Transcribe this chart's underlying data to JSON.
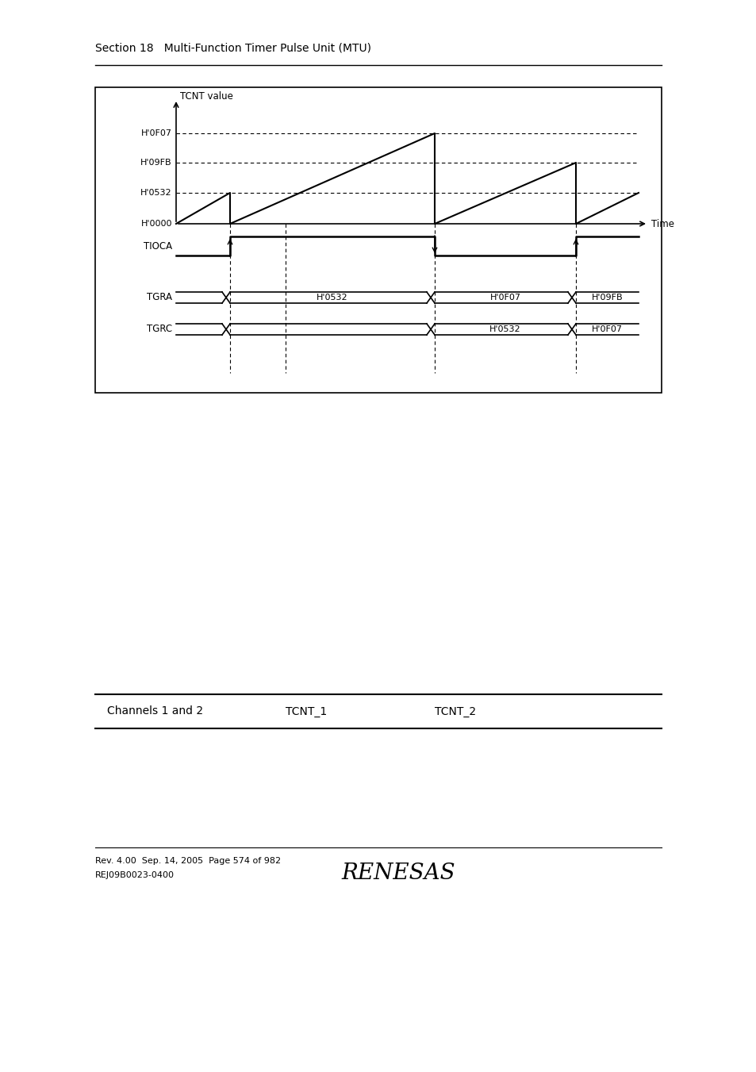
{
  "section_header": "Section 18   Multi-Function Timer Pulse Unit (MTU)",
  "tcnt_label": "TCNT value",
  "time_label": "Time",
  "h_levels": [
    "H'0F07",
    "H'09FB",
    "H'0532",
    "H'0000"
  ],
  "tioca_label": "TIOCA",
  "tgra_label": "TGRA",
  "tgrc_label": "TGRC",
  "tgra_values": [
    "H'0532",
    "H'0F07",
    "H'09FB"
  ],
  "tgrc_values": [
    "H'0532",
    "H'0F07"
  ],
  "footer_line1": "Channels 1 and 2",
  "footer_tcnt1": "TCNT_1",
  "footer_tcnt2": "TCNT_2",
  "rev_line": "Rev. 4.00  Sep. 14, 2005  Page 574 of 982",
  "rej_line": "REJ09B0023-0400",
  "renesas_logo": "RENESAS",
  "bg_color": "#ffffff"
}
